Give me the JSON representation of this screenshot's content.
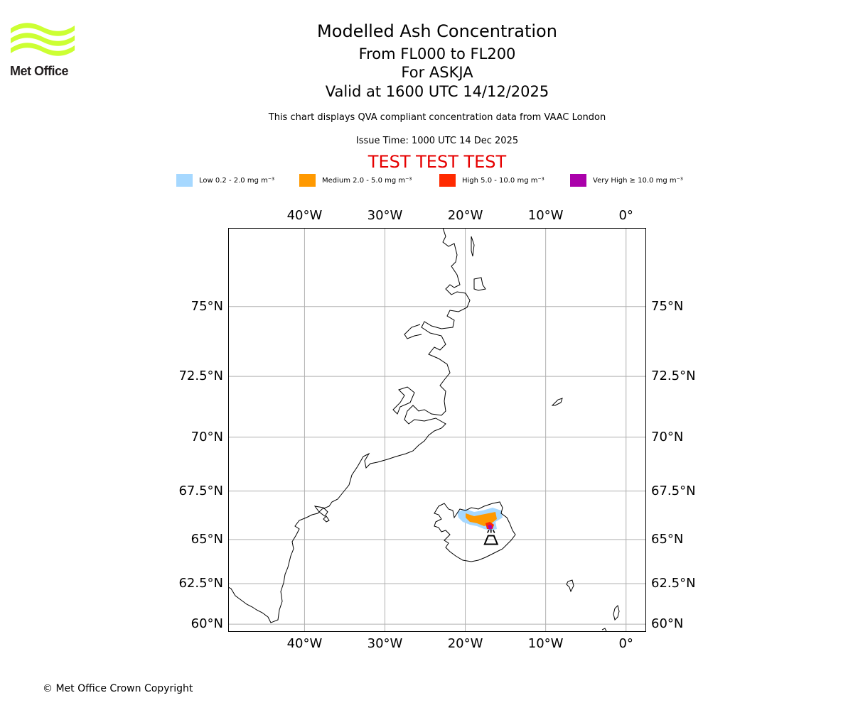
{
  "logo": {
    "wordmark": "Met Office",
    "icon": "met-office-wave-logo",
    "color": "#ccff33"
  },
  "header": {
    "title": "Modelled Ash Concentration",
    "levels": "From FL000 to FL200",
    "volcano": "For ASKJA",
    "valid": "Valid at 1600 UTC 14/12/2025",
    "note": "This chart displays QVA compliant concentration data from VAAC London",
    "issue": "Issue Time: 1000 UTC 14 Dec 2025",
    "test_banner": "TEST TEST TEST",
    "test_color": "#e60000"
  },
  "legend": [
    {
      "label": "Low 0.2 - 2.0 mg m⁻³",
      "color": "#a6d8ff"
    },
    {
      "label": "Medium 2.0 - 5.0 mg m⁻³",
      "color": "#ff9900"
    },
    {
      "label": "High 5.0 - 10.0 mg m⁻³",
      "color": "#ff2a00"
    },
    {
      "label": "Very High ≥ 10.0 mg m⁻³",
      "color": "#aa00aa"
    }
  ],
  "map": {
    "lon_range": [
      -49.5,
      2.5
    ],
    "lat_range": [
      59.5,
      77.4
    ],
    "lon_ticks": [
      {
        "value": -40,
        "label": "40°W"
      },
      {
        "value": -30,
        "label": "30°W"
      },
      {
        "value": -20,
        "label": "20°W"
      },
      {
        "value": -10,
        "label": "10°W"
      },
      {
        "value": 0,
        "label": "0°"
      }
    ],
    "lat_ticks": [
      {
        "value": 75,
        "label": "75°N"
      },
      {
        "value": 72.5,
        "label": "72.5°N"
      },
      {
        "value": 70,
        "label": "70°N"
      },
      {
        "value": 67.5,
        "label": "67.5°N"
      },
      {
        "value": 65,
        "label": "65°N"
      },
      {
        "value": 62.5,
        "label": "62.5°N"
      },
      {
        "value": 60,
        "label": "60°N"
      }
    ],
    "gridlines": true,
    "grid_color": "#b0b0b0",
    "volcano_marker": {
      "icon": "volcano-icon",
      "lon": -16.8,
      "lat": 65.05
    }
  },
  "footer": {
    "copyright": "© Met Office Crown Copyright"
  }
}
